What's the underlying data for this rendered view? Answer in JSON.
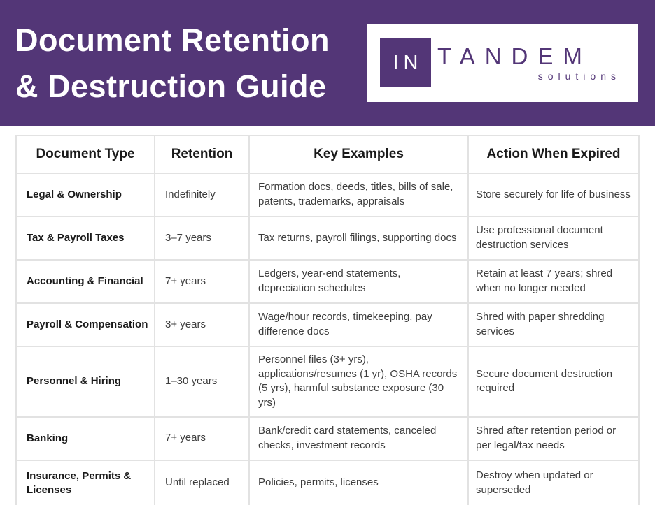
{
  "colors": {
    "banner_purple": "#533677",
    "logo_purple": "#533677",
    "table_border": "#e2e2e2",
    "header_text": "#1a1a1a",
    "body_text": "#3d3d3d"
  },
  "header": {
    "title_line1": "Document Retention",
    "title_line2": "& Destruction Guide",
    "logo": {
      "mark": "IN",
      "name": "TANDEM",
      "tagline": "solutions"
    }
  },
  "table": {
    "columns": [
      "Document Type",
      "Retention",
      "Key Examples",
      "Action When Expired"
    ],
    "rows": [
      {
        "type": "Legal & Ownership",
        "retention": "Indefinitely",
        "examples": "Formation docs, deeds, titles, bills of sale, patents, trademarks, appraisals",
        "action": "Store securely for life of business"
      },
      {
        "type": "Tax & Payroll Taxes",
        "retention": "3–7 years",
        "examples": "Tax returns, payroll filings, supporting docs",
        "action": "Use professional document destruction services"
      },
      {
        "type": "Accounting & Financial",
        "retention": "7+ years",
        "examples": "Ledgers, year-end statements, depreciation schedules",
        "action": "Retain at least 7 years; shred when no longer needed"
      },
      {
        "type": "Payroll & Compensation",
        "retention": "3+ years",
        "examples": "Wage/hour records, timekeeping, pay difference docs",
        "action": "Shred with paper shredding services"
      },
      {
        "type": "Personnel & Hiring",
        "retention": "1–30 years",
        "examples": "Personnel files (3+ yrs), applications/resumes (1 yr), OSHA records (5 yrs), harmful substance exposure (30 yrs)",
        "action": "Secure document destruction required"
      },
      {
        "type": "Banking",
        "retention": "7+ years",
        "examples": "Bank/credit card statements, canceled checks, investment records",
        "action": "Shred after retention period or per legal/tax needs"
      },
      {
        "type": "Insurance, Permits & Licenses",
        "retention": "Until replaced",
        "examples": "Policies, permits, licenses",
        "action": "Destroy when updated or superseded"
      }
    ]
  }
}
